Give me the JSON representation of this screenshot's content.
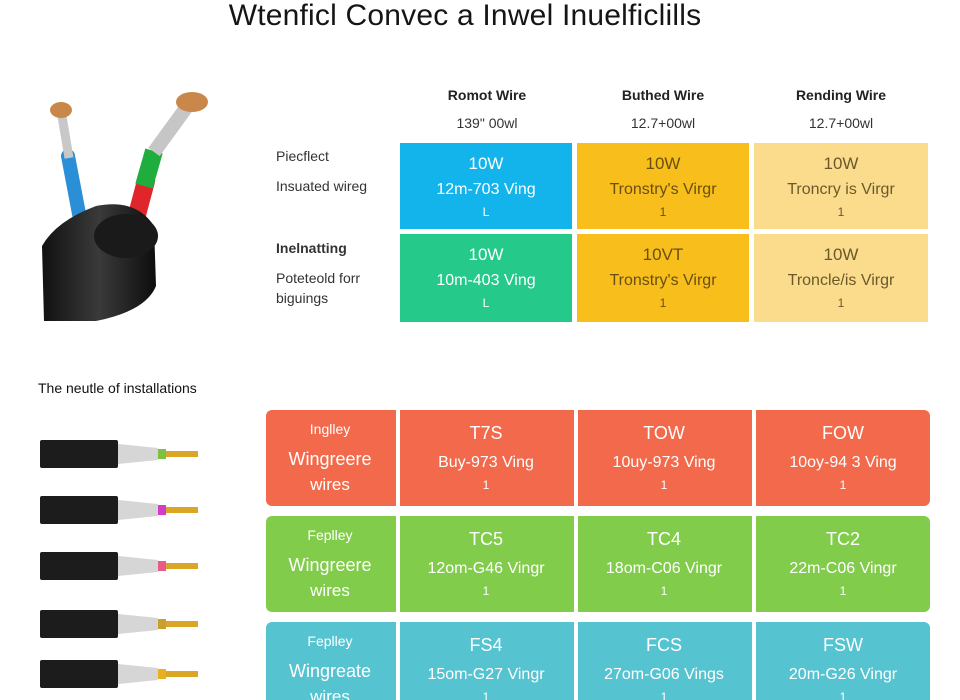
{
  "title": "Wtenficl Convec a Inwel Inuelficlills",
  "columns": [
    {
      "name": "Romot Wire",
      "sub": "139\" 00wl"
    },
    {
      "name": "Buthed Wire",
      "sub": "12.7+00wl"
    },
    {
      "name": "Rending Wire",
      "sub": "12.7+00wl"
    }
  ],
  "top_rows": [
    {
      "label_line1": "Piecflect",
      "label_line2": "Insuated wireg",
      "label_bold": false,
      "cells": [
        {
          "v": "10W",
          "s": "12m-703 Ving",
          "t": "L",
          "color": "#13b4ec"
        },
        {
          "v": "10W",
          "s": "Tronstry's Virgr",
          "t": "1",
          "color": "#f7be1c"
        },
        {
          "v": "10W",
          "s": "Troncry is Virgr",
          "t": "1",
          "color": "#fadc8c"
        }
      ]
    },
    {
      "label_line1": "Inelnatting",
      "label_line2": "Poteteold forr",
      "label_line3": "biguings",
      "label_bold": true,
      "cells": [
        {
          "v": "10W",
          "s": "10m-403 Ving",
          "t": "L",
          "color": "#25c98a"
        },
        {
          "v": "10VT",
          "s": "Tronstry's Virgr",
          "t": "1",
          "color": "#f7be1c"
        },
        {
          "v": "10W",
          "s": "Troncle/is Virgr",
          "t": "1",
          "color": "#fadc8c"
        }
      ]
    }
  ],
  "section2_title": "The neutle of installations",
  "bands": [
    {
      "color": "#f26a4b",
      "label": [
        "Inglley",
        "Wingreere",
        "wires"
      ],
      "cells": [
        {
          "v": "T7S",
          "s": "Buy-973 Ving",
          "t": "1"
        },
        {
          "v": "TOW",
          "s": "10uy-973 Ving",
          "t": "1"
        },
        {
          "v": "FOW",
          "s": "10oy-94 3 Ving",
          "t": "1"
        }
      ]
    },
    {
      "color": "#82cc4c",
      "label": [
        "Feplley",
        "Wingreere",
        "wires"
      ],
      "cells": [
        {
          "v": "TC5",
          "s": "12om-G46 Vingr",
          "t": "1"
        },
        {
          "v": "TC4",
          "s": "18om-C06 Vingr",
          "t": "1"
        },
        {
          "v": "TC2",
          "s": "22m-C06 Vingr",
          "t": "1"
        }
      ]
    },
    {
      "color": "#56c3d1",
      "label": [
        "Feplley",
        "Wingreate",
        "wires"
      ],
      "cells": [
        {
          "v": "FS4",
          "s": "15om-G27 Vingr",
          "t": "1"
        },
        {
          "v": "FCS",
          "s": "27om-G06 Vings",
          "t": "1"
        },
        {
          "v": "FSW",
          "s": "20m-G26 Vingr",
          "t": "1"
        }
      ]
    }
  ],
  "connector_tips": [
    "#7dc142",
    "#d23cc8",
    "#e85a8a",
    "#c9a030",
    "#e8b020"
  ]
}
